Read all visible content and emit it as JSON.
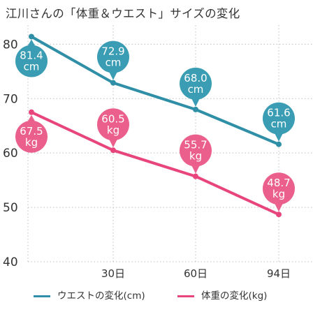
{
  "chart_data": {
    "type": "line",
    "title": "江川さんの「体重＆ウエスト」サイズの変化",
    "x": [
      "",
      "30日",
      "60日",
      "94日"
    ],
    "ylim": [
      40,
      83
    ],
    "yticks": [
      40,
      50,
      60,
      70,
      80
    ],
    "grid": true,
    "legend": "bottom",
    "series": [
      {
        "name": "ウエストの変化(cm)",
        "color": "#2f8fa6",
        "marker_color": "#3a9db4",
        "values": [
          81.4,
          72.9,
          68.0,
          61.6
        ],
        "labels": [
          "81.4\ncm",
          "72.9\ncm",
          "68.0\ncm",
          "61.6\ncm"
        ]
      },
      {
        "name": "体重の変化(kg)",
        "color": "#e8457c",
        "marker_color": "#eb5f8c",
        "values": [
          67.5,
          60.5,
          55.7,
          48.7
        ],
        "labels": [
          "67.5\nkg",
          "60.5\nkg",
          "55.7\nkg",
          "48.7\nkg"
        ]
      }
    ]
  }
}
